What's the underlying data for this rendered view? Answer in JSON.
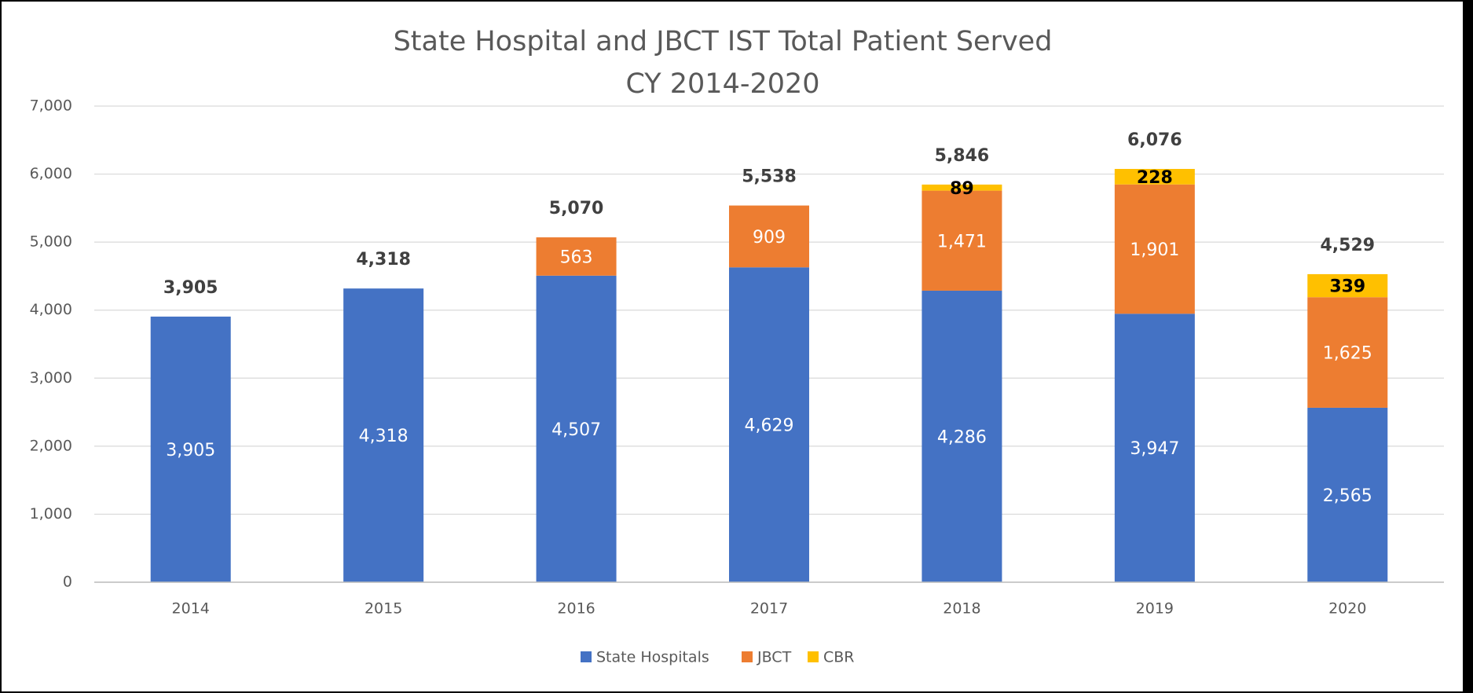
{
  "chart_data": {
    "type": "stacked-bar",
    "title": "State Hospital and JBCT IST Total Patient Served",
    "subtitle": "CY 2014-2020",
    "categories": [
      "2014",
      "2015",
      "2016",
      "2017",
      "2018",
      "2019",
      "2020"
    ],
    "series": [
      {
        "name": "State Hospitals",
        "color": "#4472c4",
        "label_color": "#ffffff",
        "values": [
          3905,
          4318,
          4507,
          4629,
          4286,
          3947,
          2565
        ],
        "value_labels": [
          "3,905",
          "4,318",
          "4,507",
          "4,629",
          "4,286",
          "3,947",
          "2,565"
        ]
      },
      {
        "name": "JBCT",
        "color": "#ed7d31",
        "label_color": "#ffffff",
        "values": [
          null,
          null,
          563,
          909,
          1471,
          1901,
          1625
        ],
        "value_labels": [
          null,
          null,
          "563",
          "909",
          "1,471",
          "1,901",
          "1,625"
        ]
      },
      {
        "name": "CBR",
        "color": "#ffc000",
        "label_color": "#000000",
        "values": [
          null,
          null,
          null,
          null,
          89,
          228,
          339
        ],
        "value_labels": [
          null,
          null,
          null,
          null,
          "89",
          "228",
          "339"
        ]
      }
    ],
    "totals": {
      "values": [
        3905,
        4318,
        5070,
        5538,
        5846,
        6076,
        4529
      ],
      "value_labels": [
        "3,905",
        "4,318",
        "5,070",
        "5,538",
        "5,846",
        "6,076",
        "4,529"
      ]
    },
    "ylim": [
      0,
      7000
    ],
    "yticks": [
      0,
      {
        "value": 1000,
        "label": "1,000"
      },
      {
        "value": 2000,
        "label": "2,000"
      },
      {
        "value": 3000,
        "label": "3,000"
      },
      {
        "value": 4000,
        "label": "4,000"
      },
      {
        "value": 5000,
        "label": "5,000"
      },
      {
        "value": 6000,
        "label": "6,000"
      },
      {
        "value": 7000,
        "label": "7,000"
      }
    ],
    "grid": true,
    "legend": "bottom"
  }
}
